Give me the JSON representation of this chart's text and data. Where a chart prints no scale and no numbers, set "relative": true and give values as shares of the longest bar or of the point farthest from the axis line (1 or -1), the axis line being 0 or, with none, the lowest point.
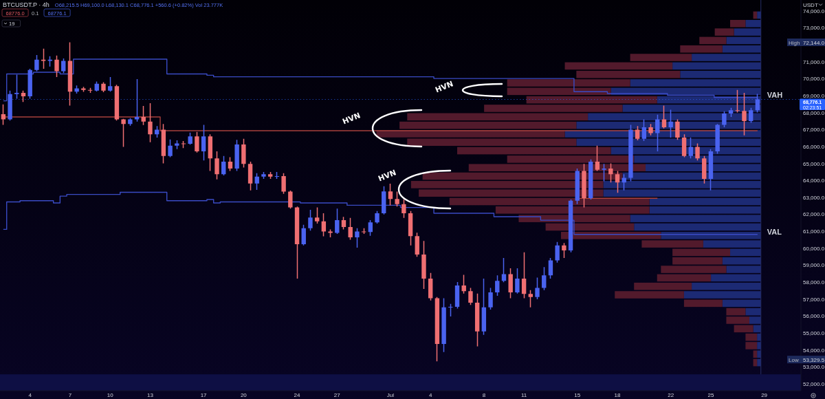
{
  "chart_data": [
    {
      "type": "candlestick",
      "title": "BTCUSDT.P · 4h",
      "subtitle": "O68,215.5 H69,100.0 L68,130.1 C68,776.1 +560.6 (+0.82%) Vol 23.777K",
      "ylabel": "USDT",
      "annotations": [
        "HVN",
        "HVN",
        "HVN",
        "High 72,144.0",
        "Low 53,329.5",
        "02:23:51",
        "68776.0",
        "0.1",
        "68776.1",
        "19"
      ],
      "categories": [
        null,
        null,
        null,
        null,
        "4",
        null,
        null,
        null,
        null,
        null,
        "7",
        null,
        null,
        null,
        null,
        null,
        "10",
        null,
        null,
        null,
        null,
        null,
        "13",
        null,
        null,
        null,
        null,
        null,
        null,
        null,
        "17",
        null,
        null,
        null,
        null,
        null,
        "20",
        null,
        null,
        null,
        null,
        null,
        null,
        null,
        "24",
        null,
        null,
        null,
        null,
        null,
        "27",
        null,
        null,
        null,
        null,
        null,
        null,
        null,
        "Jul",
        null,
        null,
        null,
        null,
        null,
        "4",
        null,
        null,
        null,
        null,
        null,
        null,
        null,
        "8",
        null,
        null,
        null,
        null,
        null,
        "11",
        null,
        null,
        null,
        null,
        null,
        null,
        null,
        "15",
        null,
        null,
        null,
        null,
        null,
        "18",
        null,
        null,
        null,
        null,
        null,
        null,
        null,
        "22",
        null,
        null,
        null,
        null,
        null,
        "25",
        null,
        null,
        null,
        null,
        null,
        null,
        null,
        "29",
        null,
        null,
        null,
        null,
        null
      ],
      "ohlc": [
        [
          67900,
          68480,
          67270,
          67600
        ],
        [
          67600,
          69290,
          67530,
          69090
        ],
        [
          69090,
          70240,
          68820,
          69160
        ],
        [
          69160,
          69290,
          68620,
          68960
        ],
        [
          68960,
          70580,
          68820,
          70510
        ],
        [
          70510,
          71390,
          70440,
          71120
        ],
        [
          71120,
          71770,
          70580,
          71050
        ],
        [
          71050,
          71320,
          70710,
          71120
        ],
        [
          71120,
          71360,
          70100,
          70440
        ],
        [
          70440,
          71190,
          70330,
          71050
        ],
        [
          71050,
          72144,
          68410,
          69230
        ],
        [
          69230,
          69600,
          69120,
          69430
        ],
        [
          69430,
          69520,
          69220,
          69330
        ],
        [
          69330,
          69460,
          69160,
          69290
        ],
        [
          69290,
          69830,
          69240,
          69700
        ],
        [
          69700,
          69790,
          69200,
          69290
        ],
        [
          69290,
          70100,
          69230,
          69560
        ],
        [
          69560,
          69640,
          67530,
          67600
        ],
        [
          67600,
          67630,
          65980,
          67330
        ],
        [
          67330,
          67670,
          67220,
          67600
        ],
        [
          67600,
          69970,
          67470,
          67740
        ],
        [
          67740,
          68390,
          67260,
          67470
        ],
        [
          67470,
          68550,
          66250,
          66720
        ],
        [
          66720,
          67200,
          66520,
          66990
        ],
        [
          66990,
          67330,
          65000,
          65440
        ],
        [
          65440,
          66410,
          65370,
          66050
        ],
        [
          66050,
          66360,
          65840,
          66180
        ],
        [
          66180,
          66320,
          65910,
          66160
        ],
        [
          66160,
          66820,
          66110,
          66590
        ],
        [
          66590,
          66860,
          65640,
          65710
        ],
        [
          65710,
          67270,
          65170,
          66590
        ],
        [
          66590,
          66720,
          64560,
          65300
        ],
        [
          65300,
          65710,
          64060,
          64360
        ],
        [
          64360,
          65440,
          64290,
          65100
        ],
        [
          65100,
          65370,
          64560,
          64700
        ],
        [
          64700,
          66390,
          64560,
          66120
        ],
        [
          66120,
          66450,
          64760,
          64970
        ],
        [
          64970,
          65100,
          63410,
          63820
        ],
        [
          63820,
          64420,
          63440,
          64220
        ],
        [
          64220,
          64490,
          64090,
          64360
        ],
        [
          64360,
          64490,
          64090,
          64220
        ],
        [
          64220,
          64490,
          64090,
          64250
        ],
        [
          64250,
          64420,
          63210,
          63340
        ],
        [
          63340,
          63400,
          62330,
          62400
        ],
        [
          62400,
          62460,
          58200,
          60230
        ],
        [
          60230,
          61380,
          60160,
          61180
        ],
        [
          61180,
          62260,
          61040,
          61810
        ],
        [
          61810,
          62400,
          61450,
          61580
        ],
        [
          61580,
          62060,
          60700,
          60980
        ],
        [
          60980,
          61110,
          60640,
          60900
        ],
        [
          60900,
          62330,
          60840,
          61650
        ],
        [
          61650,
          61850,
          61110,
          61250
        ],
        [
          61250,
          61790,
          60500,
          60640
        ],
        [
          60640,
          61180,
          60030,
          60980
        ],
        [
          60980,
          61180,
          60840,
          60950
        ],
        [
          60950,
          61650,
          60730,
          61520
        ],
        [
          61520,
          62190,
          61450,
          62060
        ],
        [
          62060,
          63650,
          61990,
          63350
        ],
        [
          63350,
          63800,
          62530,
          62900
        ],
        [
          62900,
          63340,
          62460,
          62600
        ],
        [
          62600,
          62870,
          61790,
          62060
        ],
        [
          62060,
          62190,
          60160,
          60710
        ],
        [
          60710,
          60910,
          59490,
          59620
        ],
        [
          59620,
          60430,
          57600,
          58200
        ],
        [
          58200,
          58540,
          56920,
          57050
        ],
        [
          57050,
          57120,
          53329.5,
          54350
        ],
        [
          54350,
          57050,
          53870,
          56510
        ],
        [
          56510,
          56710,
          55970,
          56540
        ],
        [
          56540,
          58000,
          56440,
          57800
        ],
        [
          57800,
          58430,
          57320,
          57460
        ],
        [
          57460,
          57660,
          56650,
          56780
        ],
        [
          56780,
          57320,
          54210,
          55090
        ],
        [
          55090,
          58200,
          54890,
          56510
        ],
        [
          56510,
          57660,
          56380,
          57390
        ],
        [
          57390,
          58400,
          57190,
          58070
        ],
        [
          58070,
          59420,
          57990,
          58470
        ],
        [
          58470,
          58810,
          57050,
          57390
        ],
        [
          57390,
          58810,
          57320,
          58200
        ],
        [
          58200,
          59760,
          57050,
          57300
        ],
        [
          57300,
          57530,
          56510,
          57120
        ],
        [
          57120,
          58270,
          56990,
          57660
        ],
        [
          57660,
          58880,
          57530,
          58400
        ],
        [
          58400,
          59420,
          58200,
          59280
        ],
        [
          59280,
          60370,
          59150,
          60160
        ],
        [
          60160,
          60300,
          59420,
          59870
        ],
        [
          59870,
          62870,
          59760,
          62800
        ],
        [
          62800,
          64700,
          62600,
          64560
        ],
        [
          64560,
          64970,
          62400,
          62950
        ],
        [
          62950,
          65240,
          62870,
          65100
        ],
        [
          65100,
          66050,
          64560,
          64630
        ],
        [
          64630,
          64970,
          63950,
          64700
        ],
        [
          64700,
          65000,
          63880,
          64360
        ],
        [
          64360,
          64560,
          63270,
          63880
        ],
        [
          63880,
          64360,
          63410,
          64150
        ],
        [
          64150,
          67270,
          63950,
          66990
        ],
        [
          66990,
          67200,
          66360,
          66450
        ],
        [
          66450,
          67600,
          66320,
          67130
        ],
        [
          67130,
          67330,
          66660,
          66790
        ],
        [
          66790,
          67870,
          65710,
          67600
        ],
        [
          67600,
          68410,
          67060,
          67130
        ],
        [
          67130,
          68170,
          66520,
          67470
        ],
        [
          67470,
          67600,
          66390,
          66520
        ],
        [
          66520,
          66720,
          65370,
          65440
        ],
        [
          65440,
          66520,
          65300,
          65980
        ],
        [
          65980,
          66180,
          65170,
          65300
        ],
        [
          65300,
          65440,
          63820,
          64090
        ],
        [
          64090,
          65840,
          63410,
          65710
        ],
        [
          65710,
          67330,
          65570,
          67270
        ],
        [
          67270,
          68080,
          67130,
          67940
        ],
        [
          67940,
          68280,
          67740,
          68140
        ],
        [
          68140,
          69330,
          68010,
          68100
        ],
        [
          68100,
          69160,
          66660,
          67500
        ],
        [
          67500,
          68280,
          67400,
          68140
        ],
        [
          68140,
          69100,
          68010,
          68776.1
        ],
        null,
        null,
        null,
        null,
        null,
        null
      ],
      "colors": [
        "#ef6f72",
        "#4a63f0",
        "#4a63f0",
        "#ef6f72",
        "#4a63f0",
        "#4a63f0",
        "#ef6f72",
        "#4a63f0",
        "#ef6f72",
        "#4a63f0",
        "#ef6f72",
        "#4a63f0",
        "#ef6f72",
        "#ef6f72",
        "#4a63f0",
        "#ef6f72",
        "#4a63f0",
        "#ef6f72",
        "#ef6f72",
        "#4a63f0",
        "#4a63f0",
        "#ef6f72",
        "#ef6f72",
        "#4a63f0",
        "#ef6f72",
        "#4a63f0",
        "#4a63f0",
        "#ef6f72",
        "#4a63f0",
        "#ef6f72",
        "#4a63f0",
        "#ef6f72",
        "#ef6f72",
        "#4a63f0",
        "#ef6f72",
        "#4a63f0",
        "#ef6f72",
        "#ef6f72",
        "#4a63f0",
        "#4a63f0",
        "#ef6f72",
        "#4a63f0",
        "#ef6f72",
        "#ef6f72",
        "#ef6f72",
        "#4a63f0",
        "#4a63f0",
        "#ef6f72",
        "#ef6f72",
        "#ef6f72",
        "#4a63f0",
        "#ef6f72",
        "#ef6f72",
        "#4a63f0",
        "#ef6f72",
        "#4a63f0",
        "#4a63f0",
        "#4a63f0",
        "#ef6f72",
        "#ef6f72",
        "#ef6f72",
        "#ef6f72",
        "#ef6f72",
        "#ef6f72",
        "#ef6f72",
        "#ef6f72",
        "#4a63f0",
        "#4a63f0",
        "#4a63f0",
        "#ef6f72",
        "#ef6f72",
        "#ef6f72",
        "#4a63f0",
        "#4a63f0",
        "#4a63f0",
        "#4a63f0",
        "#ef6f72",
        "#4a63f0",
        "#ef6f72",
        "#ef6f72",
        "#4a63f0",
        "#4a63f0",
        "#4a63f0",
        "#4a63f0",
        "#ef6f72",
        "#4a63f0",
        "#4a63f0",
        "#ef6f72",
        "#4a63f0",
        "#ef6f72",
        "#4a63f0",
        "#ef6f72",
        "#ef6f72",
        "#4a63f0",
        "#4a63f0",
        "#ef6f72",
        "#4a63f0",
        "#ef6f72",
        "#4a63f0",
        "#ef6f72",
        "#4a63f0",
        "#ef6f72",
        "#ef6f72",
        "#4a63f0",
        "#ef6f72",
        "#ef6f72",
        "#4a63f0",
        "#4a63f0",
        "#4a63f0",
        "#4a63f0",
        "#ef6f72",
        "#ef6f72",
        "#4a63f0",
        "#4a63f0",
        null,
        null,
        null,
        null,
        null,
        null
      ],
      "series": [
        {
          "type": "step",
          "name": "VAH",
          "color": "#3a4bc4",
          "values": [
            68690,
            70280,
            70280,
            70280,
            70280,
            70380,
            70380,
            70380,
            70380,
            70280,
            70280,
            71150,
            71150,
            71150,
            71150,
            71150,
            71150,
            71150,
            71150,
            71150,
            71150,
            71150,
            71150,
            71150,
            71150,
            70280,
            70280,
            70280,
            70280,
            70280,
            70280,
            70200,
            70110,
            70110,
            70110,
            70110,
            70110,
            70110,
            70110,
            70110,
            70110,
            70110,
            70110,
            70110,
            70110,
            70110,
            70110,
            70110,
            70110,
            70110,
            70110,
            70110,
            70110,
            70110,
            70110,
            70110,
            70110,
            70110,
            70110,
            70110,
            70110,
            70110,
            70110,
            70110,
            70110,
            70010,
            70010,
            70010,
            70010,
            70010,
            70010,
            70010,
            70010,
            70010,
            70010,
            70010,
            70010,
            70010,
            70010,
            70010,
            70010,
            70010,
            70010,
            70010,
            70010,
            70010,
            69230,
            69230,
            69230,
            69230,
            69230,
            69120,
            69120,
            69120,
            69120,
            69120,
            69120,
            69120,
            69120,
            69120,
            69020,
            69020,
            69020,
            69020,
            69020,
            69020,
            69020,
            68890,
            68890,
            68890,
            68890,
            68890,
            68890,
            68890,
            null,
            null,
            null,
            null,
            null,
            null
          ]
        },
        {
          "type": "step",
          "name": "VAL",
          "color": "#3a4bc4",
          "values": [
            61110,
            62730,
            62730,
            62800,
            62800,
            62800,
            62800,
            62800,
            62670,
            63070,
            63170,
            63170,
            63170,
            63170,
            63170,
            63170,
            63170,
            63170,
            63300,
            63300,
            63300,
            63300,
            63300,
            63300,
            63300,
            62800,
            62800,
            62800,
            62800,
            62800,
            62800,
            62870,
            62670,
            62730,
            62730,
            62730,
            62730,
            62730,
            62730,
            62730,
            62730,
            62730,
            62730,
            62730,
            62730,
            62670,
            62670,
            62670,
            62670,
            62670,
            62670,
            62670,
            62530,
            62530,
            62530,
            62530,
            62530,
            62530,
            62530,
            62530,
            62400,
            62400,
            62400,
            62400,
            62400,
            62060,
            62060,
            62060,
            62060,
            62060,
            62060,
            62060,
            62060,
            62060,
            61860,
            61860,
            61860,
            61860,
            61860,
            61860,
            61860,
            61650,
            61650,
            61650,
            61650,
            61650,
            60810,
            60810,
            60810,
            60810,
            60810,
            60810,
            60810,
            60810,
            60810,
            60810,
            60810,
            60810,
            60810,
            60810,
            60810,
            60810,
            60810,
            60810,
            60810,
            60810,
            60810,
            60810,
            60810,
            60810,
            60810,
            60810,
            60810,
            60810,
            null,
            null,
            null,
            null,
            null,
            null
          ]
        },
        {
          "type": "step",
          "color": "#a8403c",
          "values": [
            67740,
            67740,
            67740,
            67740,
            67740,
            67740,
            67740,
            67740,
            67740,
            67740,
            67740,
            67740,
            67740,
            67740,
            67740,
            67740,
            67740,
            67740,
            67740,
            67740,
            67740,
            67740,
            67740,
            67740,
            66930,
            66930,
            66930,
            66930,
            66930,
            66930,
            66930,
            66930,
            66930,
            66930,
            66930,
            66930,
            66930,
            66930,
            66930,
            66930,
            66930,
            66930,
            66930,
            66930,
            66930,
            66930,
            66930,
            66930,
            66930,
            66930,
            66930,
            66930,
            66930,
            66930,
            66930,
            66930,
            66930,
            66930,
            66930,
            66930,
            66930,
            66930,
            66930,
            66930,
            66930,
            66930,
            66930,
            66930,
            66930,
            66930,
            66930,
            66930,
            66930,
            66930,
            66930,
            66930,
            66930,
            66930,
            66930,
            66930,
            66930,
            66930,
            66930,
            66930,
            66930,
            66930,
            66930,
            66930,
            66930,
            66930,
            66930,
            66930,
            66930,
            66930,
            66930,
            66930,
            66930,
            66930,
            66930,
            66930,
            66930,
            66930,
            66930,
            66930,
            66930,
            66930,
            66930,
            66930,
            66930,
            66930,
            66930,
            66930,
            66930,
            66930,
            null,
            null,
            null,
            null,
            null,
            null
          ]
        },
        {
          "type": "step",
          "color": "#a8403c",
          "values": [
            null,
            null,
            null,
            null,
            null,
            null,
            null,
            null,
            null,
            null,
            null,
            null,
            null,
            null,
            null,
            null,
            null,
            null,
            null,
            null,
            null,
            null,
            null,
            null,
            null,
            null,
            null,
            null,
            null,
            null,
            null,
            null,
            null,
            null,
            null,
            null,
            null,
            null,
            null,
            null,
            null,
            null,
            null,
            null,
            null,
            null,
            null,
            null,
            null,
            null,
            null,
            null,
            null,
            null,
            null,
            null,
            null,
            null,
            null,
            null,
            null,
            null,
            null,
            null,
            null,
            null,
            null,
            null,
            null,
            null,
            null,
            null,
            null,
            null,
            null,
            null,
            null,
            null,
            null,
            null,
            null,
            null,
            null,
            null,
            null,
            null,
            62940,
            62940,
            62940,
            62940,
            62940,
            62940,
            62940,
            62940,
            62940,
            62940,
            62940,
            62940,
            62940,
            null,
            null,
            null,
            null,
            null,
            null,
            null,
            null,
            null,
            null,
            null,
            null,
            null,
            null,
            null,
            null,
            null,
            null,
            null,
            null,
            null
          ]
        }
      ],
      "ylim": [
        51590,
        74640
      ],
      "yticks": [
        {
          "value": 52000,
          "label": "52,000.0"
        },
        {
          "value": 53000,
          "label": "53,000.0"
        },
        {
          "value": 54000,
          "label": "54,000.0"
        },
        {
          "value": 55000,
          "label": "55,000.0"
        },
        {
          "value": 56000,
          "label": "56,000.0"
        },
        {
          "value": 57000,
          "label": "57,000.0"
        },
        {
          "value": 58000,
          "label": "58,000.0"
        },
        {
          "value": 59000,
          "label": "59,000.0"
        },
        {
          "value": 60000,
          "label": "60,000.0"
        },
        {
          "value": 61000,
          "label": "61,000.0"
        },
        {
          "value": 62000,
          "label": "62,000.0"
        },
        {
          "value": 63000,
          "label": "63,000.0"
        },
        {
          "value": 64000,
          "label": "64,000.0"
        },
        {
          "value": 65000,
          "label": "65,000.0"
        },
        {
          "value": 66000,
          "label": "66,000.0"
        },
        {
          "value": 67000,
          "label": "67,000.0"
        },
        {
          "value": 68000,
          "label": "68,000.0"
        },
        {
          "value": 69000,
          "label": "69,000.0"
        },
        {
          "value": 70000,
          "label": "70,000.0"
        },
        {
          "value": 71000,
          "label": "71,000.0"
        },
        {
          "value": 73000,
          "label": "73,000.0"
        },
        {
          "value": 74000,
          "label": "74,000.0"
        }
      ],
      "ref_lines": [
        {
          "axis": "y",
          "value": 68776.1,
          "label": "68,776.1",
          "color": "#2962ff",
          "line_style": "dotted"
        }
      ],
      "bands": [
        {
          "axis": "y",
          "from": 51590,
          "to": 52560,
          "color": "#0e0f44"
        }
      ]
    },
    {
      "type": "bar",
      "orientation": "horizontal",
      "stacked": true,
      "relative": true,
      "tick_labels": false,
      "ylim": [
        51590,
        74640
      ],
      "x": [
        73750,
        73250,
        72750,
        72250,
        71750,
        71250,
        70750,
        70250,
        69750,
        69250,
        68750,
        68250,
        67750,
        67250,
        66750,
        66250,
        65750,
        65250,
        64750,
        64250,
        63750,
        63250,
        62750,
        62250,
        61750,
        61250,
        60750,
        60250,
        59750,
        59250,
        58750,
        58250,
        57750,
        57250,
        56750,
        56250,
        55750,
        55250,
        54750,
        54250,
        53750,
        53250
      ],
      "series": [
        {
          "color": "#1c2a74",
          "values": [
            0.01,
            0.04,
            0.07,
            0.09,
            0.1,
            0.18,
            0.23,
            0.21,
            0.34,
            0.39,
            0.27,
            0.36,
            0.45,
            0.48,
            0.51,
            0.48,
            0.39,
            0.33,
            0.3,
            0.36,
            0.41,
            0.41,
            0.29,
            0.29,
            0.34,
            0.33,
            0.26,
            0.15,
            0.08,
            0.1,
            0.09,
            0.13,
            0.18,
            0.2,
            0.1,
            0.04,
            0.03,
            0.02,
            0.01,
            0.01,
            0.01,
            0.01
          ]
        },
        {
          "color": "#521a2c",
          "values": [
            0.01,
            0.04,
            0.05,
            0.07,
            0.11,
            0.16,
            0.28,
            0.27,
            0.32,
            0.27,
            0.34,
            0.36,
            0.47,
            0.46,
            0.49,
            0.44,
            0.4,
            0.33,
            0.46,
            0.52,
            0.5,
            0.48,
            0.52,
            0.4,
            0.29,
            0.23,
            0.26,
            0.16,
            0.15,
            0.13,
            0.17,
            0.14,
            0.15,
            0.18,
            0.1,
            0.05,
            0.06,
            0.05,
            0.03,
            0.03,
            0.01,
            0.01
          ]
        }
      ]
    }
  ]
}
